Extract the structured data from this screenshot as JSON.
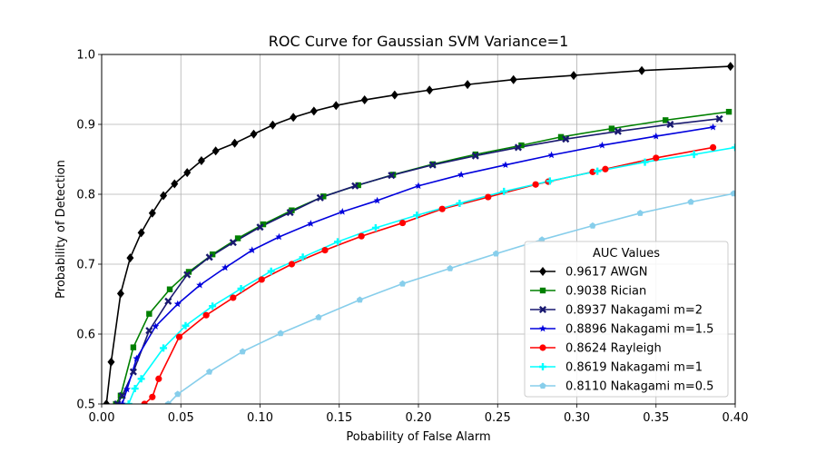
{
  "chart_data": {
    "type": "line",
    "title": "ROC Curve for Gaussian SVM Variance=1",
    "xlabel": "Pobability of False Alarm",
    "ylabel": "Probability of Detection",
    "xlim": [
      0.0,
      0.4
    ],
    "ylim": [
      0.5,
      1.0
    ],
    "xticks": [
      "0.00",
      "0.05",
      "0.10",
      "0.15",
      "0.20",
      "0.25",
      "0.30",
      "0.35",
      "0.40"
    ],
    "yticks": [
      "0.5",
      "0.6",
      "0.7",
      "0.8",
      "0.9",
      "1.0"
    ],
    "grid": true,
    "legend": {
      "title": "AUC Values",
      "placement": "bottom-right"
    },
    "series": [
      {
        "name": "0.9617 AWGN",
        "color": "#000000",
        "marker": "diamond",
        "x": [
          0.003,
          0.006,
          0.012,
          0.018,
          0.025,
          0.032,
          0.039,
          0.046,
          0.054,
          0.063,
          0.072,
          0.084,
          0.096,
          0.108,
          0.121,
          0.134,
          0.148,
          0.166,
          0.185,
          0.207,
          0.231,
          0.26,
          0.298,
          0.341,
          0.397
        ],
        "y": [
          0.5,
          0.56,
          0.658,
          0.709,
          0.745,
          0.773,
          0.798,
          0.815,
          0.831,
          0.848,
          0.862,
          0.873,
          0.886,
          0.899,
          0.91,
          0.919,
          0.927,
          0.935,
          0.942,
          0.949,
          0.957,
          0.964,
          0.97,
          0.977,
          0.983
        ]
      },
      {
        "name": "0.9038 Rician",
        "color": "#008000",
        "marker": "square",
        "x": [
          0.009,
          0.012,
          0.02,
          0.03,
          0.043,
          0.055,
          0.07,
          0.086,
          0.102,
          0.12,
          0.14,
          0.162,
          0.184,
          0.209,
          0.236,
          0.265,
          0.29,
          0.322,
          0.356,
          0.396
        ],
        "y": [
          0.5,
          0.512,
          0.581,
          0.629,
          0.664,
          0.689,
          0.714,
          0.737,
          0.757,
          0.777,
          0.797,
          0.813,
          0.828,
          0.843,
          0.857,
          0.87,
          0.882,
          0.894,
          0.906,
          0.918
        ]
      },
      {
        "name": "0.8937 Nakagami m=2",
        "color": "#191970",
        "marker": "x",
        "x": [
          0.01,
          0.013,
          0.02,
          0.03,
          0.042,
          0.054,
          0.068,
          0.083,
          0.1,
          0.119,
          0.138,
          0.16,
          0.183,
          0.209,
          0.236,
          0.263,
          0.293,
          0.326,
          0.359,
          0.39
        ],
        "y": [
          0.5,
          0.512,
          0.546,
          0.605,
          0.647,
          0.685,
          0.71,
          0.731,
          0.753,
          0.774,
          0.795,
          0.812,
          0.827,
          0.842,
          0.855,
          0.867,
          0.879,
          0.89,
          0.9,
          0.908
        ]
      },
      {
        "name": "0.8896 Nakagami m=1.5",
        "color": "#0000dd",
        "marker": "star",
        "x": [
          0.013,
          0.016,
          0.022,
          0.034,
          0.048,
          0.062,
          0.078,
          0.095,
          0.112,
          0.132,
          0.152,
          0.174,
          0.2,
          0.227,
          0.255,
          0.284,
          0.316,
          0.35,
          0.386
        ],
        "y": [
          0.5,
          0.521,
          0.565,
          0.611,
          0.643,
          0.67,
          0.695,
          0.72,
          0.739,
          0.758,
          0.775,
          0.791,
          0.812,
          0.828,
          0.842,
          0.856,
          0.87,
          0.883,
          0.896
        ]
      },
      {
        "name": "0.8624 Rayleigh",
        "color": "#ff0000",
        "marker": "circle",
        "x": [
          0.027,
          0.032,
          0.036,
          0.049,
          0.066,
          0.083,
          0.101,
          0.12,
          0.141,
          0.164,
          0.19,
          0.215,
          0.244,
          0.274,
          0.282,
          0.31,
          0.318,
          0.35,
          0.386
        ],
        "y": [
          0.5,
          0.51,
          0.536,
          0.596,
          0.627,
          0.652,
          0.678,
          0.7,
          0.72,
          0.74,
          0.759,
          0.779,
          0.796,
          0.814,
          0.818,
          0.832,
          0.836,
          0.852,
          0.867
        ]
      },
      {
        "name": "0.8619 Nakagami m=1",
        "color": "#00ffff",
        "marker": "plus",
        "x": [
          0.017,
          0.021,
          0.025,
          0.039,
          0.053,
          0.07,
          0.088,
          0.107,
          0.127,
          0.149,
          0.173,
          0.199,
          0.226,
          0.254,
          0.283,
          0.313,
          0.343,
          0.374,
          0.4
        ],
        "y": [
          0.5,
          0.522,
          0.536,
          0.58,
          0.612,
          0.64,
          0.665,
          0.69,
          0.71,
          0.732,
          0.752,
          0.77,
          0.787,
          0.804,
          0.819,
          0.833,
          0.846,
          0.857,
          0.867
        ]
      },
      {
        "name": "0.8110 Nakagami m=0.5",
        "color": "#87ceeb",
        "marker": "pentagon",
        "x": [
          0.042,
          0.048,
          0.068,
          0.089,
          0.113,
          0.137,
          0.163,
          0.19,
          0.22,
          0.249,
          0.278,
          0.31,
          0.34,
          0.372,
          0.399
        ],
        "y": [
          0.5,
          0.514,
          0.546,
          0.575,
          0.601,
          0.624,
          0.649,
          0.672,
          0.694,
          0.715,
          0.735,
          0.755,
          0.773,
          0.789,
          0.801
        ]
      }
    ]
  }
}
